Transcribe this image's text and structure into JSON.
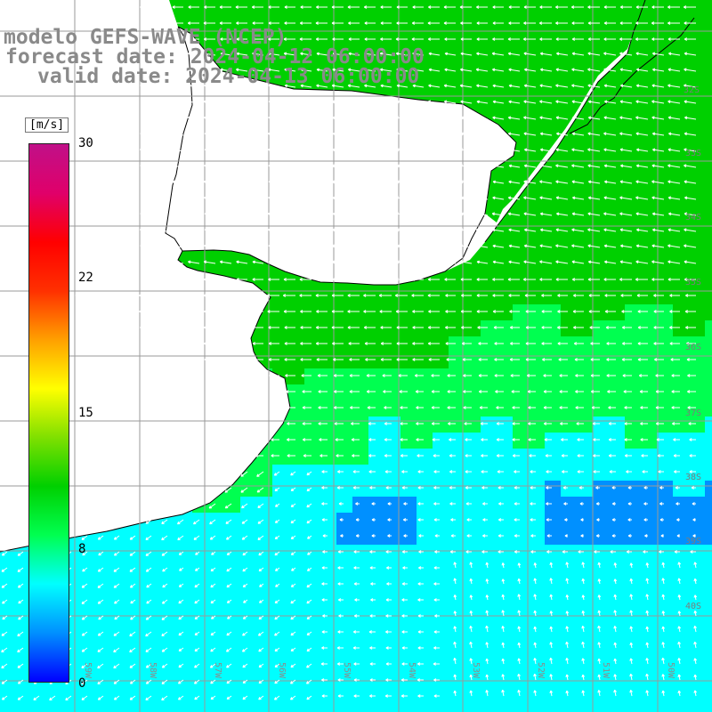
{
  "header": {
    "model_line": "modelo GEFS-WAVE (NCEP)",
    "forecast_line": "forecast date: 2024-04-12 06:00:00",
    "valid_line": "valid date: 2024-04-13 06:00:00"
  },
  "colorbar": {
    "unit": "[m/s]",
    "min": 0,
    "max": 30,
    "ticks": [
      "30",
      "22",
      "15",
      "8",
      "0"
    ],
    "tick_values": [
      30,
      22,
      15,
      8,
      0
    ],
    "colors": [
      "#0000ff",
      "#0090ff",
      "#00ffff",
      "#00ff50",
      "#00d000",
      "#80e000",
      "#ffff00",
      "#ffa000",
      "#ff3000",
      "#ff0000",
      "#e0006a",
      "#c01088"
    ]
  },
  "map": {
    "latitude_labels": [
      "32S",
      "33S",
      "34S",
      "35S",
      "36S",
      "37S",
      "38S",
      "39S",
      "40S"
    ],
    "longitude_labels": [
      "59W",
      "58W",
      "57W",
      "56W",
      "55W",
      "54W",
      "53W",
      "52W",
      "51W",
      "50W"
    ],
    "land_color": "#ffffff",
    "grid_color": "#9a9a9a",
    "coast_color": "#000000",
    "arrow_color": "#ffffff"
  }
}
